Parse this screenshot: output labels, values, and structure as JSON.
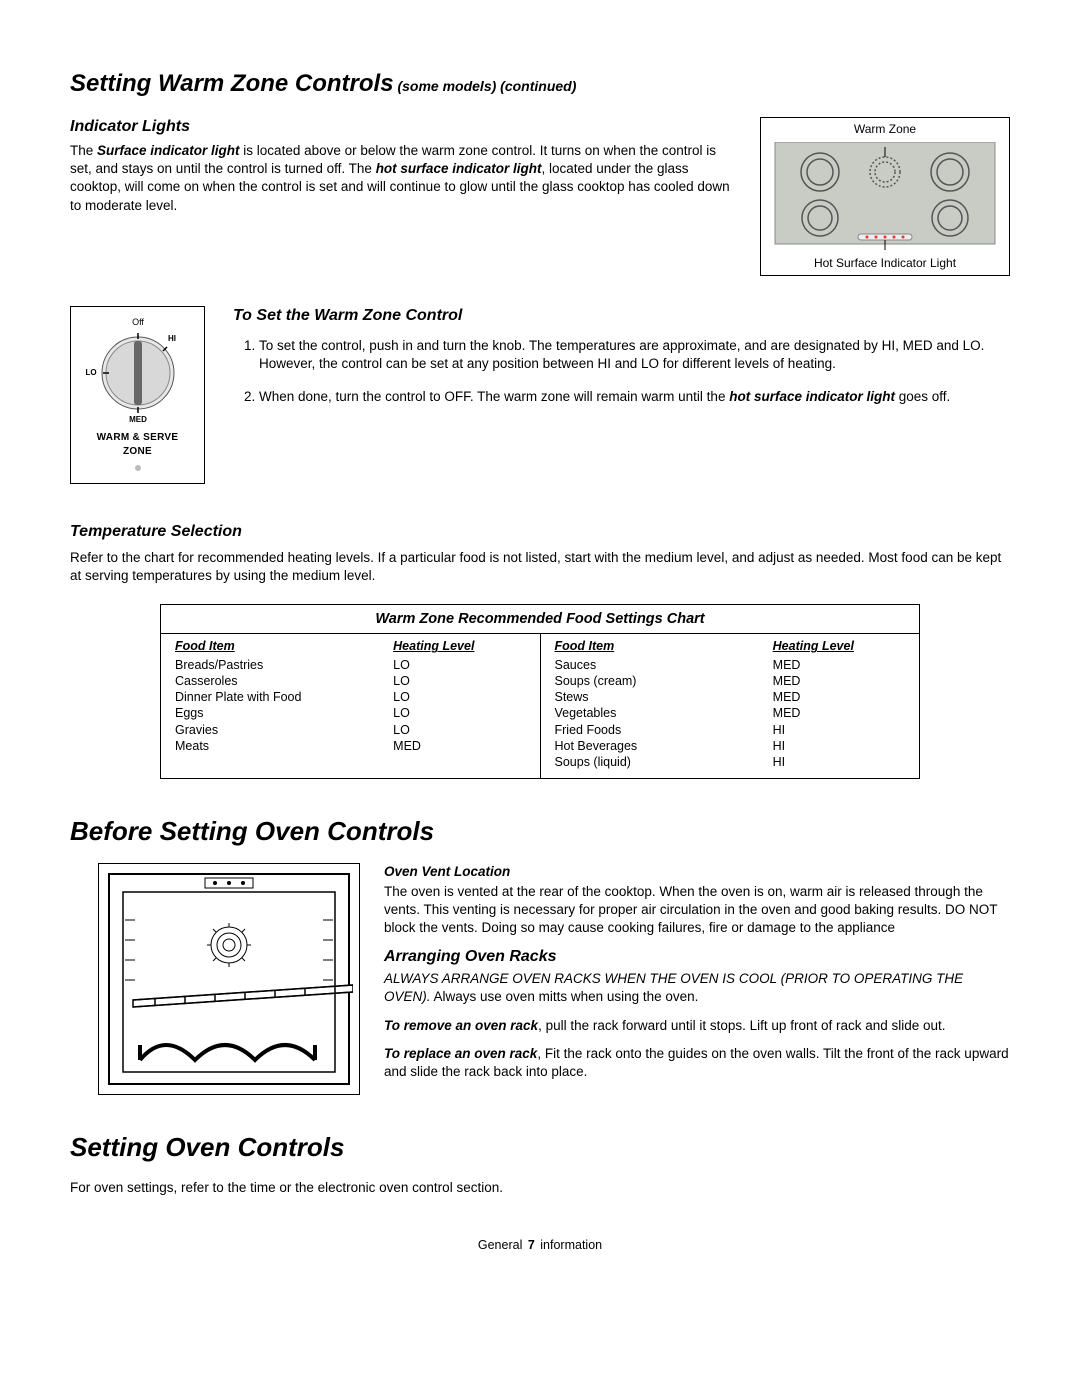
{
  "title_main": "Setting Warm Zone Controls",
  "title_suffix": " (some models) (continued)",
  "indicator": {
    "heading": "Indicator Lights",
    "text_pre": "The ",
    "bold1": "Surface indicator light",
    "text_mid": " is located above or below the warm zone control. It turns on when the control is set, and stays on until the control is turned off. The ",
    "bold2": "hot surface indicator light",
    "text_post": ", located under the glass cooktop, will come on when the control is set and will continue to glow until the glass cooktop has cooled down to moderate level."
  },
  "cooktop": {
    "top_label": "Warm Zone",
    "bottom_label": "Hot Surface Indicator Light"
  },
  "knob": {
    "off": "Off",
    "hi": "HI",
    "lo": "LO",
    "med": "MED",
    "label1": "WARM & SERVE",
    "label2": "ZONE"
  },
  "set_warm": {
    "heading": "To Set the Warm Zone Control",
    "step1": "To set the control, push in and turn the knob. The temperatures are approximate, and are designated by HI, MED and LO. However, the control can be set at any position between HI and LO for different levels of heating.",
    "step2_pre": "When done, turn the control to OFF. The warm zone will remain warm until the ",
    "step2_bold": "hot surface indicator light",
    "step2_post": " goes off."
  },
  "temp_sel": {
    "heading": "Temperature Selection",
    "para": "Refer to the chart for recommended heating levels. If a particular food is not listed, start with the medium level, and adjust as needed. Most food can be kept at serving temperatures by using the medium level."
  },
  "chart": {
    "title": "Warm Zone Recommended Food Settings Chart",
    "col1_h": "Food  Item",
    "col2_h": "Heating Level",
    "left": [
      {
        "item": "Breads/Pastries",
        "level": "LO"
      },
      {
        "item": "Casseroles",
        "level": "LO"
      },
      {
        "item": "Dinner Plate with Food",
        "level": "LO"
      },
      {
        "item": "Eggs",
        "level": "LO"
      },
      {
        "item": "Gravies",
        "level": "LO"
      },
      {
        "item": "Meats",
        "level": "MED"
      }
    ],
    "right": [
      {
        "item": "Sauces",
        "level": "MED"
      },
      {
        "item": "Soups (cream)",
        "level": "MED"
      },
      {
        "item": "Stews",
        "level": "MED"
      },
      {
        "item": "Vegetables",
        "level": "MED"
      },
      {
        "item": "Fried Foods",
        "level": "HI"
      },
      {
        "item": "Hot Beverages",
        "level": "HI"
      },
      {
        "item": "Soups (liquid)",
        "level": "HI"
      }
    ]
  },
  "before_oven": {
    "heading": "Before Setting Oven Controls",
    "vent_h": "Oven Vent Location",
    "vent_p": "The oven is vented at the rear of the cooktop. When the oven is on, warm air is released through the vents. This venting is necessary for proper air circulation in the oven and good baking results. DO NOT block the vents. Doing so may cause cooking failures, fire or damage to the appliance",
    "arrange_h": "Arranging Oven Racks",
    "arrange_warn": "ALWAYS ARRANGE OVEN RACKS WHEN THE OVEN IS COOL (PRIOR TO OPERATING THE OVEN).",
    "arrange_tail": " Always use oven mitts when using the oven.",
    "remove_b": "To remove an oven rack",
    "remove_t": ", pull the rack forward until it stops. Lift up front of rack and slide out.",
    "replace_b": "To replace an oven rack",
    "replace_t": ", Fit the rack onto the guides on the oven walls. Tilt the front of the rack upward and slide the rack back into place."
  },
  "setting_oven": {
    "heading": "Setting Oven Controls",
    "para": "For oven settings, refer to the time or the electronic oven control section."
  },
  "footer": {
    "left": "General",
    "page": "7",
    "right": "information"
  }
}
